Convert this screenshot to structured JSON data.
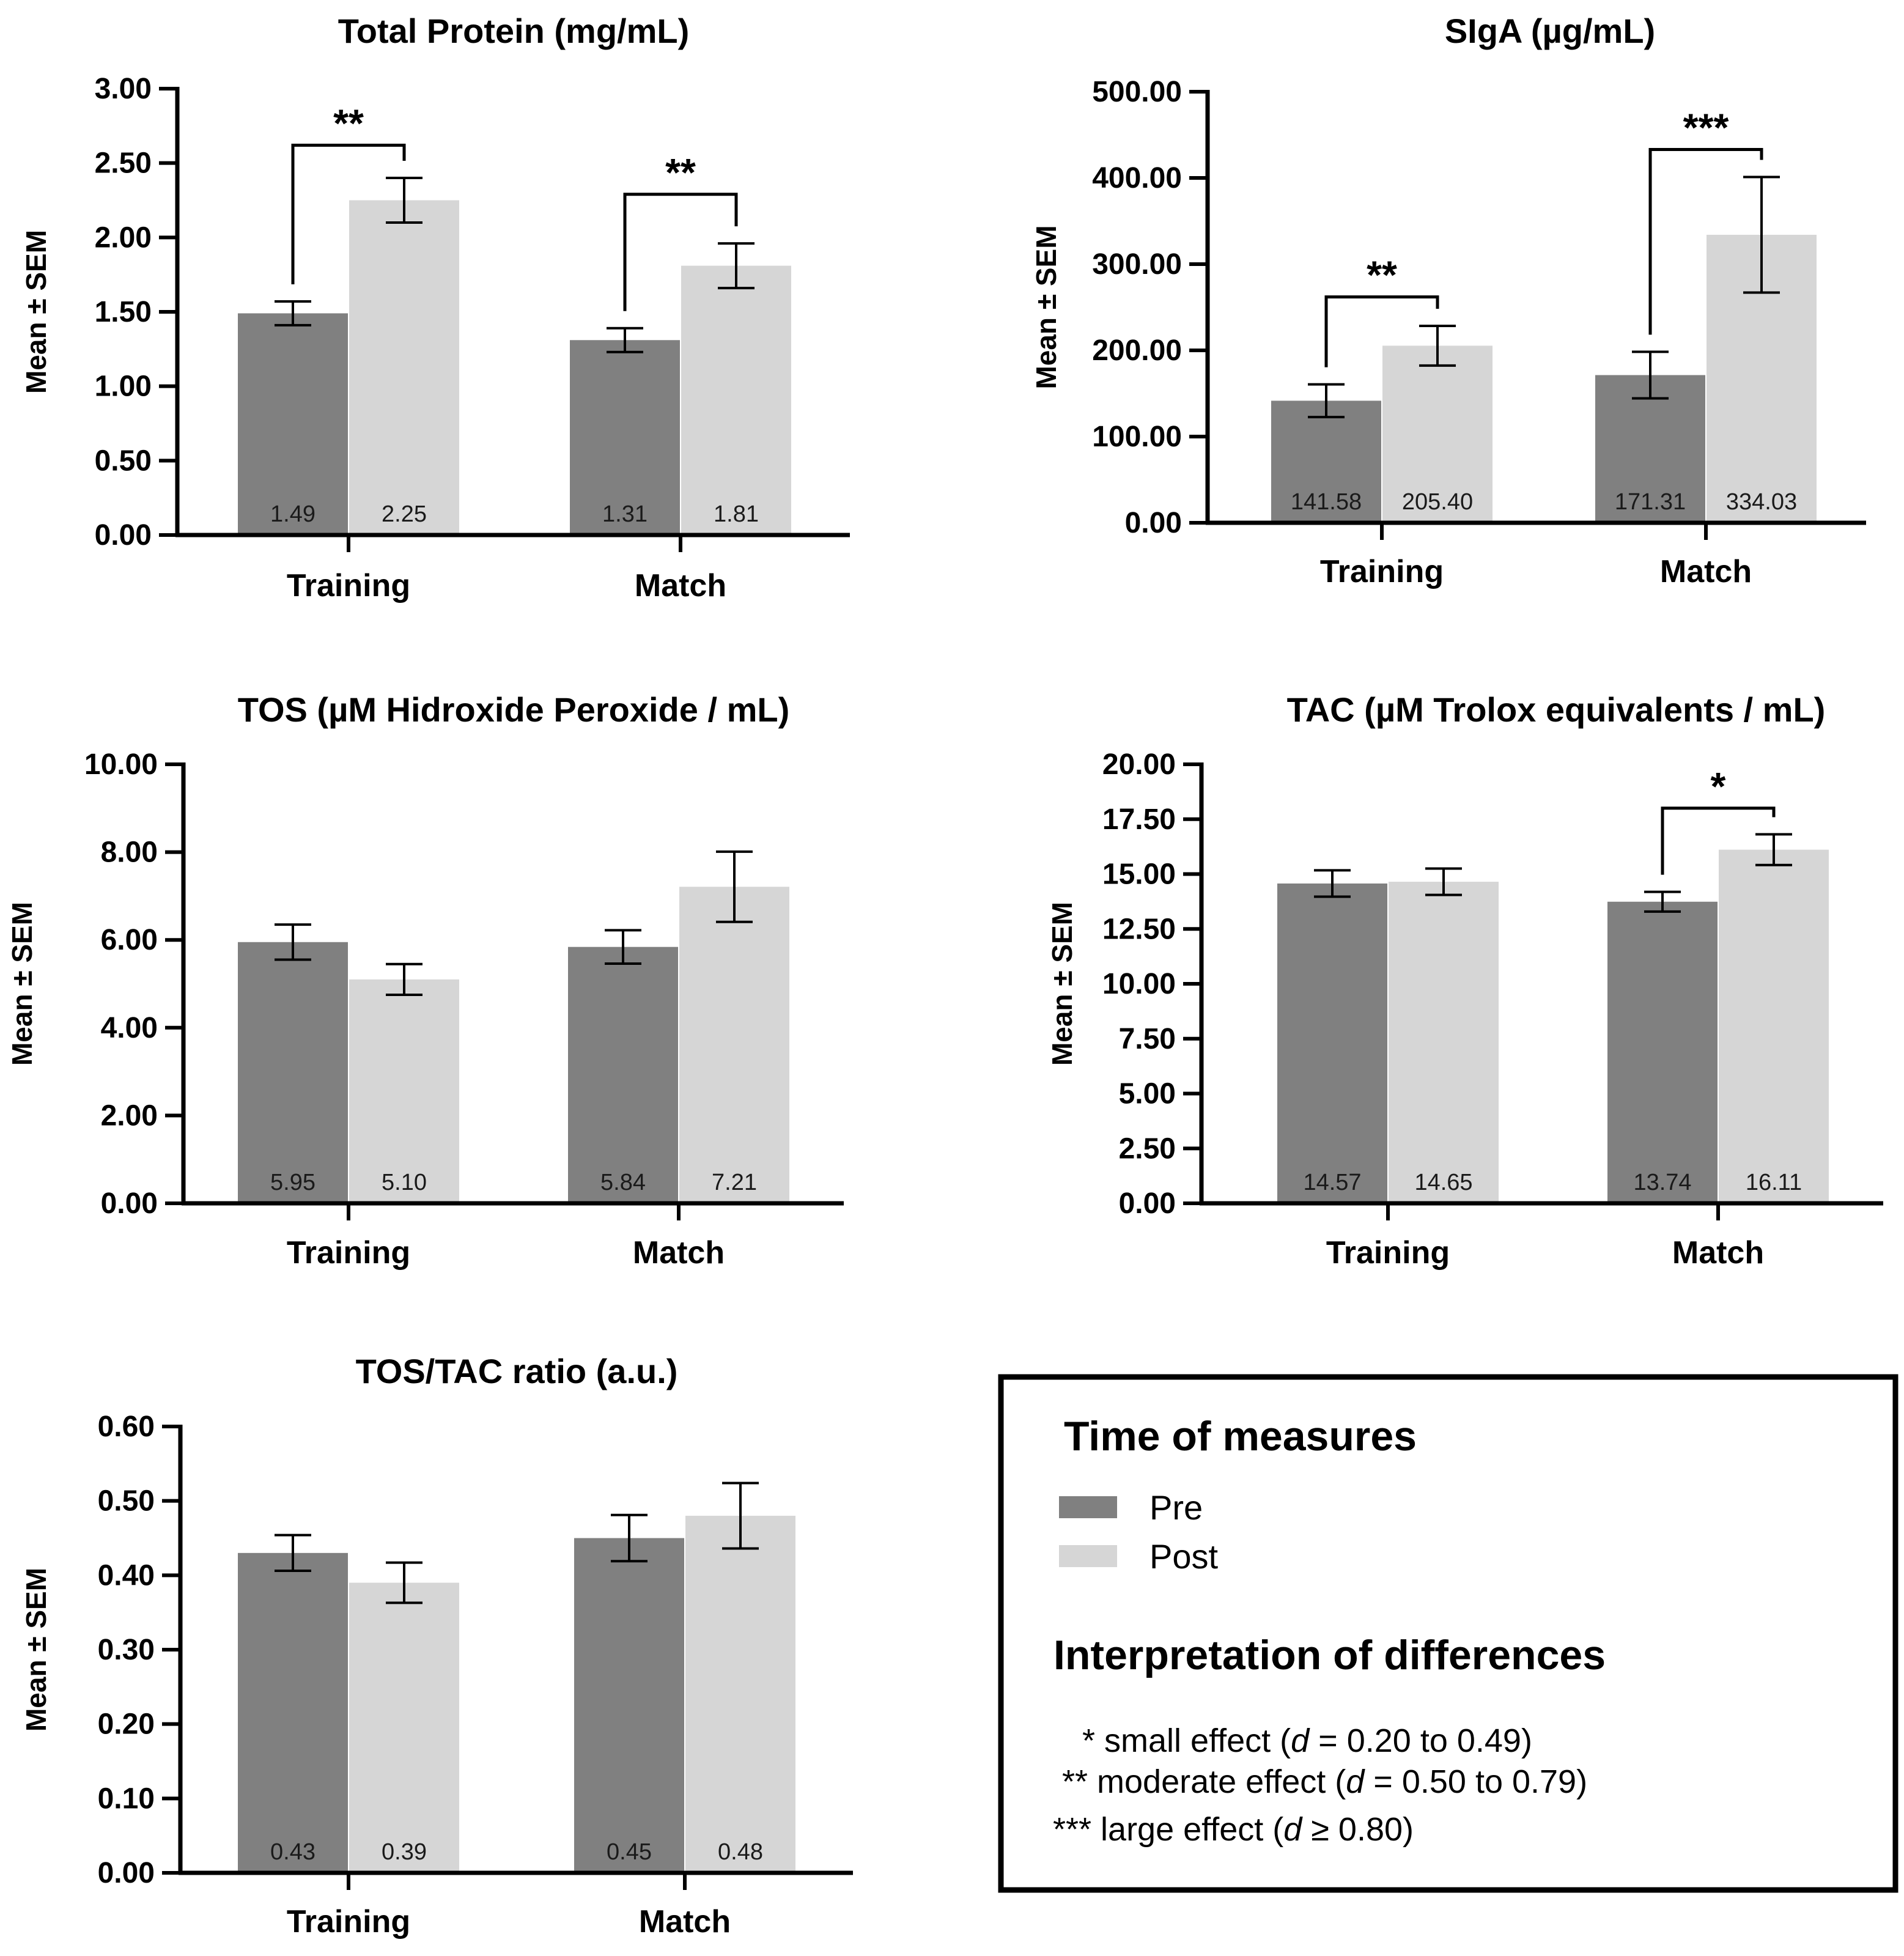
{
  "chart_data": [
    {
      "type": "bar",
      "title": "Total Protein (mg/mL)",
      "ylabel": "Mean ± SEM",
      "ylim": [
        0,
        3
      ],
      "yticks": [
        0,
        0.5,
        1,
        1.5,
        2,
        2.5,
        3
      ],
      "ytick_labels": [
        "0.00",
        "0.50",
        "1.00",
        "1.50",
        "2.00",
        "2.50",
        "3.00"
      ],
      "categories": [
        "Training",
        "Match"
      ],
      "series": [
        {
          "name": "Pre",
          "values": [
            1.49,
            1.31
          ],
          "labels": [
            "1.49",
            "1.31"
          ],
          "errors": [
            0.08,
            0.08
          ]
        },
        {
          "name": "Post",
          "values": [
            2.25,
            1.81
          ],
          "labels": [
            "2.25",
            "1.81"
          ],
          "errors": [
            0.15,
            0.15
          ]
        }
      ],
      "significance": [
        {
          "category": 0,
          "label": "**",
          "top": 2.62
        },
        {
          "category": 1,
          "label": "**",
          "top": 2.29
        }
      ]
    },
    {
      "type": "bar",
      "title": "SIgA (µg/mL)",
      "ylabel": "Mean ± SEM",
      "ylim": [
        0,
        500
      ],
      "yticks": [
        0,
        100,
        200,
        300,
        400,
        500
      ],
      "ytick_labels": [
        "0.00",
        "100.00",
        "200.00",
        "300.00",
        "400.00",
        "500.00"
      ],
      "categories": [
        "Training",
        "Match"
      ],
      "series": [
        {
          "name": "Pre",
          "values": [
            141.58,
            171.31
          ],
          "labels": [
            "141.58",
            "171.31"
          ],
          "errors": [
            19,
            27
          ]
        },
        {
          "name": "Post",
          "values": [
            205.4,
            334.03
          ],
          "labels": [
            "205.40",
            "334.03"
          ],
          "errors": [
            23,
            67
          ]
        }
      ],
      "significance": [
        {
          "category": 0,
          "label": "**",
          "top": 262
        },
        {
          "category": 1,
          "label": "***",
          "top": 433
        }
      ]
    },
    {
      "type": "bar",
      "title": "TOS (µM Hidroxide Peroxide / mL)",
      "ylabel": "Mean ± SEM",
      "ylim": [
        0,
        10
      ],
      "yticks": [
        0,
        2,
        4,
        6,
        8,
        10
      ],
      "ytick_labels": [
        "0.00",
        "2.00",
        "4.00",
        "6.00",
        "8.00",
        "10.00"
      ],
      "categories": [
        "Training",
        "Match"
      ],
      "series": [
        {
          "name": "Pre",
          "values": [
            5.95,
            5.84
          ],
          "labels": [
            "5.95",
            "5.84"
          ],
          "errors": [
            0.4,
            0.38
          ]
        },
        {
          "name": "Post",
          "values": [
            5.1,
            7.21
          ],
          "labels": [
            "5.10",
            "7.21"
          ],
          "errors": [
            0.35,
            0.8
          ]
        }
      ],
      "significance": []
    },
    {
      "type": "bar",
      "title": "TAC (µM Trolox equivalents / mL)",
      "ylabel": "Mean ± SEM",
      "ylim": [
        0,
        20
      ],
      "yticks": [
        0,
        2.5,
        5,
        7.5,
        10,
        12.5,
        15,
        17.5,
        20
      ],
      "ytick_labels": [
        "0.00",
        "2.50",
        "5.00",
        "7.50",
        "10.00",
        "12.50",
        "15.00",
        "17.50",
        "20.00"
      ],
      "categories": [
        "Training",
        "Match"
      ],
      "series": [
        {
          "name": "Pre",
          "values": [
            14.57,
            13.74
          ],
          "labels": [
            "14.57",
            "13.74"
          ],
          "errors": [
            0.6,
            0.45
          ]
        },
        {
          "name": "Post",
          "values": [
            14.65,
            16.11
          ],
          "labels": [
            "14.65",
            "16.11"
          ],
          "errors": [
            0.6,
            0.7
          ]
        }
      ],
      "significance": [
        {
          "category": 1,
          "label": "*",
          "top": 18.0
        }
      ]
    },
    {
      "type": "bar",
      "title": "TOS/TAC ratio (a.u.)",
      "ylabel": "Mean ± SEM",
      "ylim": [
        0,
        0.6
      ],
      "yticks": [
        0,
        0.1,
        0.2,
        0.3,
        0.4,
        0.5,
        0.6
      ],
      "ytick_labels": [
        "0.00",
        "0.10",
        "0.20",
        "0.30",
        "0.40",
        "0.50",
        "0.60"
      ],
      "categories": [
        "Training",
        "Match"
      ],
      "series": [
        {
          "name": "Pre",
          "values": [
            0.43,
            0.45
          ],
          "labels": [
            "0.43",
            "0.45"
          ],
          "errors": [
            0.024,
            0.031
          ]
        },
        {
          "name": "Post",
          "values": [
            0.39,
            0.48
          ],
          "labels": [
            "0.39",
            "0.48"
          ],
          "errors": [
            0.027,
            0.044
          ]
        }
      ],
      "significance": []
    }
  ],
  "colors": {
    "pre": "#808080",
    "post": "#d6d6d6",
    "axis": "#000000"
  },
  "legend": {
    "title": "Time of measures",
    "items": [
      {
        "label": "Pre",
        "color": "#808080"
      },
      {
        "label": "Post",
        "color": "#d6d6d6"
      }
    ],
    "interp_title": "Interpretation of differences",
    "notes": [
      {
        "stars": "*",
        "text": " small effect (",
        "var": "d",
        "rest": " = 0.20 to 0.49)"
      },
      {
        "stars": "**",
        "text": " moderate effect (",
        "var": "d",
        "rest": " = 0.50 to 0.79)"
      },
      {
        "stars": "***",
        "text": " large effect (",
        "var": "d",
        "rest": " ≥ 0.80)"
      }
    ]
  }
}
